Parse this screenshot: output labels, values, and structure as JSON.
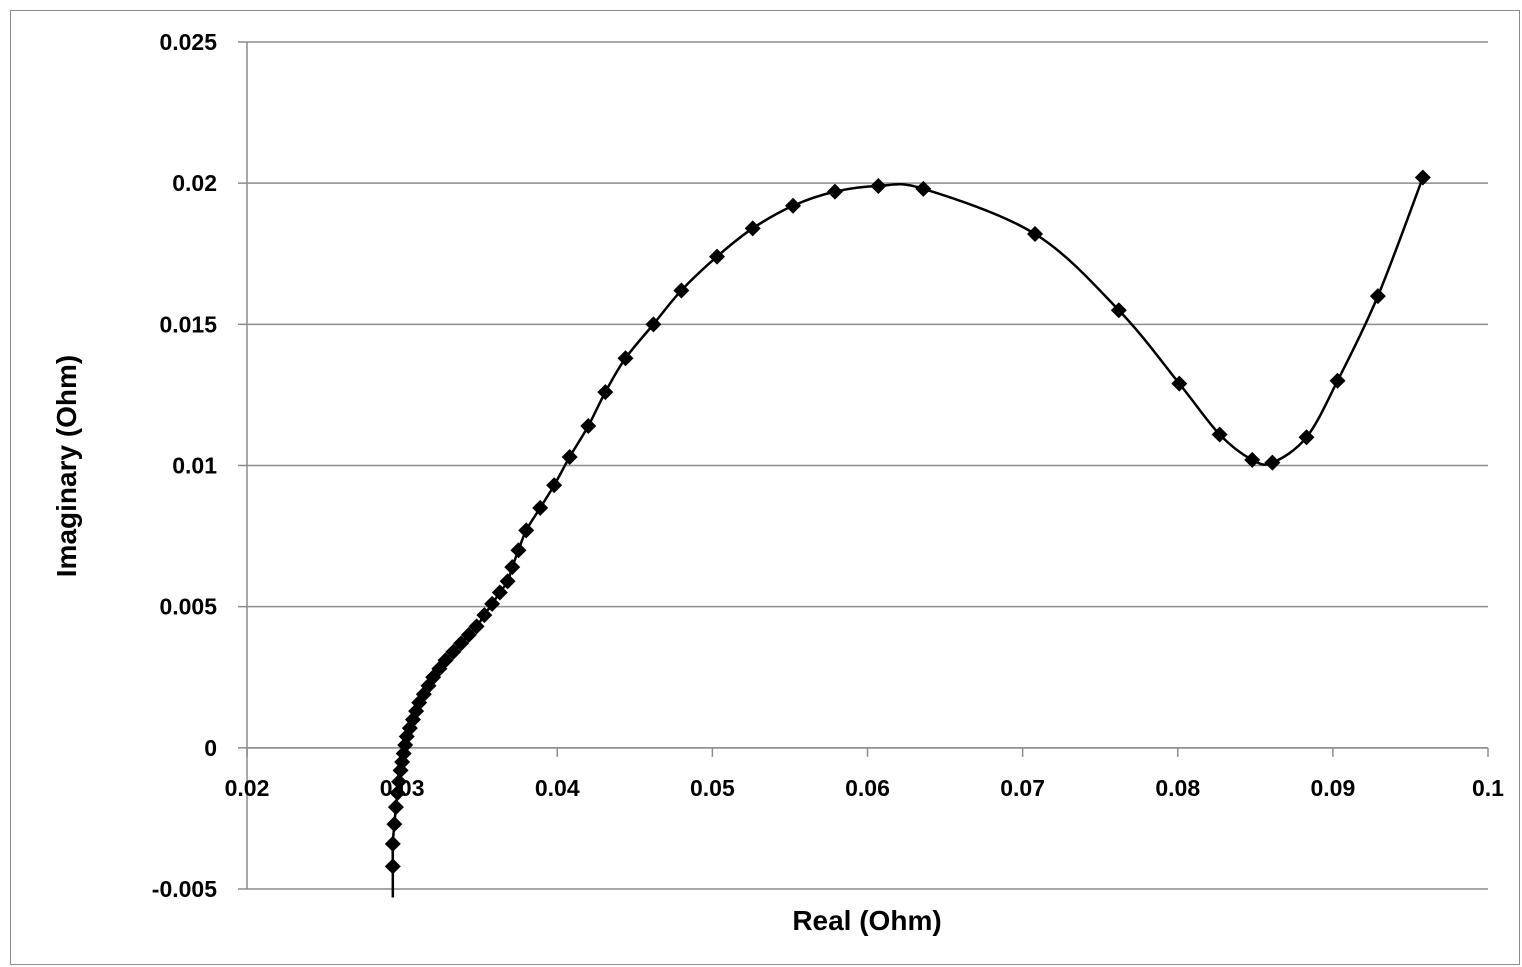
{
  "chart_data": {
    "type": "scatter",
    "title": "",
    "xlabel": "Real (Ohm)",
    "ylabel": "Imaginary (Ohm)",
    "xlim": [
      0.02,
      0.1
    ],
    "ylim": [
      -0.005,
      0.025
    ],
    "x_ticks": [
      "0.02",
      "0.03",
      "0.04",
      "0.05",
      "0.06",
      "0.07",
      "0.08",
      "0.09",
      "0.1"
    ],
    "y_ticks": [
      "-0.005",
      "0",
      "0.005",
      "0.01",
      "0.015",
      "0.02",
      "0.025"
    ],
    "grid": "horizontal",
    "legend": "none",
    "line_style": "smooth",
    "marker": "diamond",
    "colors": {
      "series": "#000000",
      "grid": "#8c8c8c",
      "axis": "#8c8c8c",
      "background": "#ffffff"
    },
    "series": [
      {
        "points": [
          [
            0.0294,
            -0.0053
          ],
          [
            0.0294,
            -0.0042
          ],
          [
            0.0294,
            -0.0034
          ],
          [
            0.0295,
            -0.0027
          ],
          [
            0.0296,
            -0.0021
          ],
          [
            0.0297,
            -0.0016
          ],
          [
            0.0298,
            -0.0012
          ],
          [
            0.0299,
            -0.0008
          ],
          [
            0.03,
            -0.0005
          ],
          [
            0.0301,
            -0.0002
          ],
          [
            0.0302,
            0.0001
          ],
          [
            0.0303,
            0.0004
          ],
          [
            0.0305,
            0.0007
          ],
          [
            0.0307,
            0.001
          ],
          [
            0.0309,
            0.0013
          ],
          [
            0.0311,
            0.0016
          ],
          [
            0.0314,
            0.0019
          ],
          [
            0.0317,
            0.0022
          ],
          [
            0.032,
            0.0025
          ],
          [
            0.0324,
            0.0028
          ],
          [
            0.0328,
            0.0031
          ],
          [
            0.0333,
            0.0034
          ],
          [
            0.0338,
            0.0037
          ],
          [
            0.0343,
            0.004
          ],
          [
            0.0348,
            0.0043
          ],
          [
            0.0353,
            0.0047
          ],
          [
            0.0358,
            0.0051
          ],
          [
            0.0363,
            0.0055
          ],
          [
            0.0368,
            0.0059
          ],
          [
            0.0371,
            0.0064
          ],
          [
            0.0375,
            0.007
          ],
          [
            0.038,
            0.0077
          ],
          [
            0.0389,
            0.0085
          ],
          [
            0.0398,
            0.0093
          ],
          [
            0.0408,
            0.0103
          ],
          [
            0.042,
            0.0114
          ],
          [
            0.0431,
            0.0126
          ],
          [
            0.0444,
            0.0138
          ],
          [
            0.0462,
            0.015
          ],
          [
            0.048,
            0.0162
          ],
          [
            0.0503,
            0.0174
          ],
          [
            0.0526,
            0.0184
          ],
          [
            0.0552,
            0.0192
          ],
          [
            0.0579,
            0.0197
          ],
          [
            0.0607,
            0.0199
          ],
          [
            0.0636,
            0.0198
          ],
          [
            0.0708,
            0.0182
          ],
          [
            0.0762,
            0.0155
          ],
          [
            0.0801,
            0.0129
          ],
          [
            0.0827,
            0.0111
          ],
          [
            0.0848,
            0.0102
          ],
          [
            0.0861,
            0.0101
          ],
          [
            0.0883,
            0.011
          ],
          [
            0.0903,
            0.013
          ],
          [
            0.0929,
            0.016
          ],
          [
            0.0958,
            0.0202
          ]
        ]
      }
    ]
  }
}
